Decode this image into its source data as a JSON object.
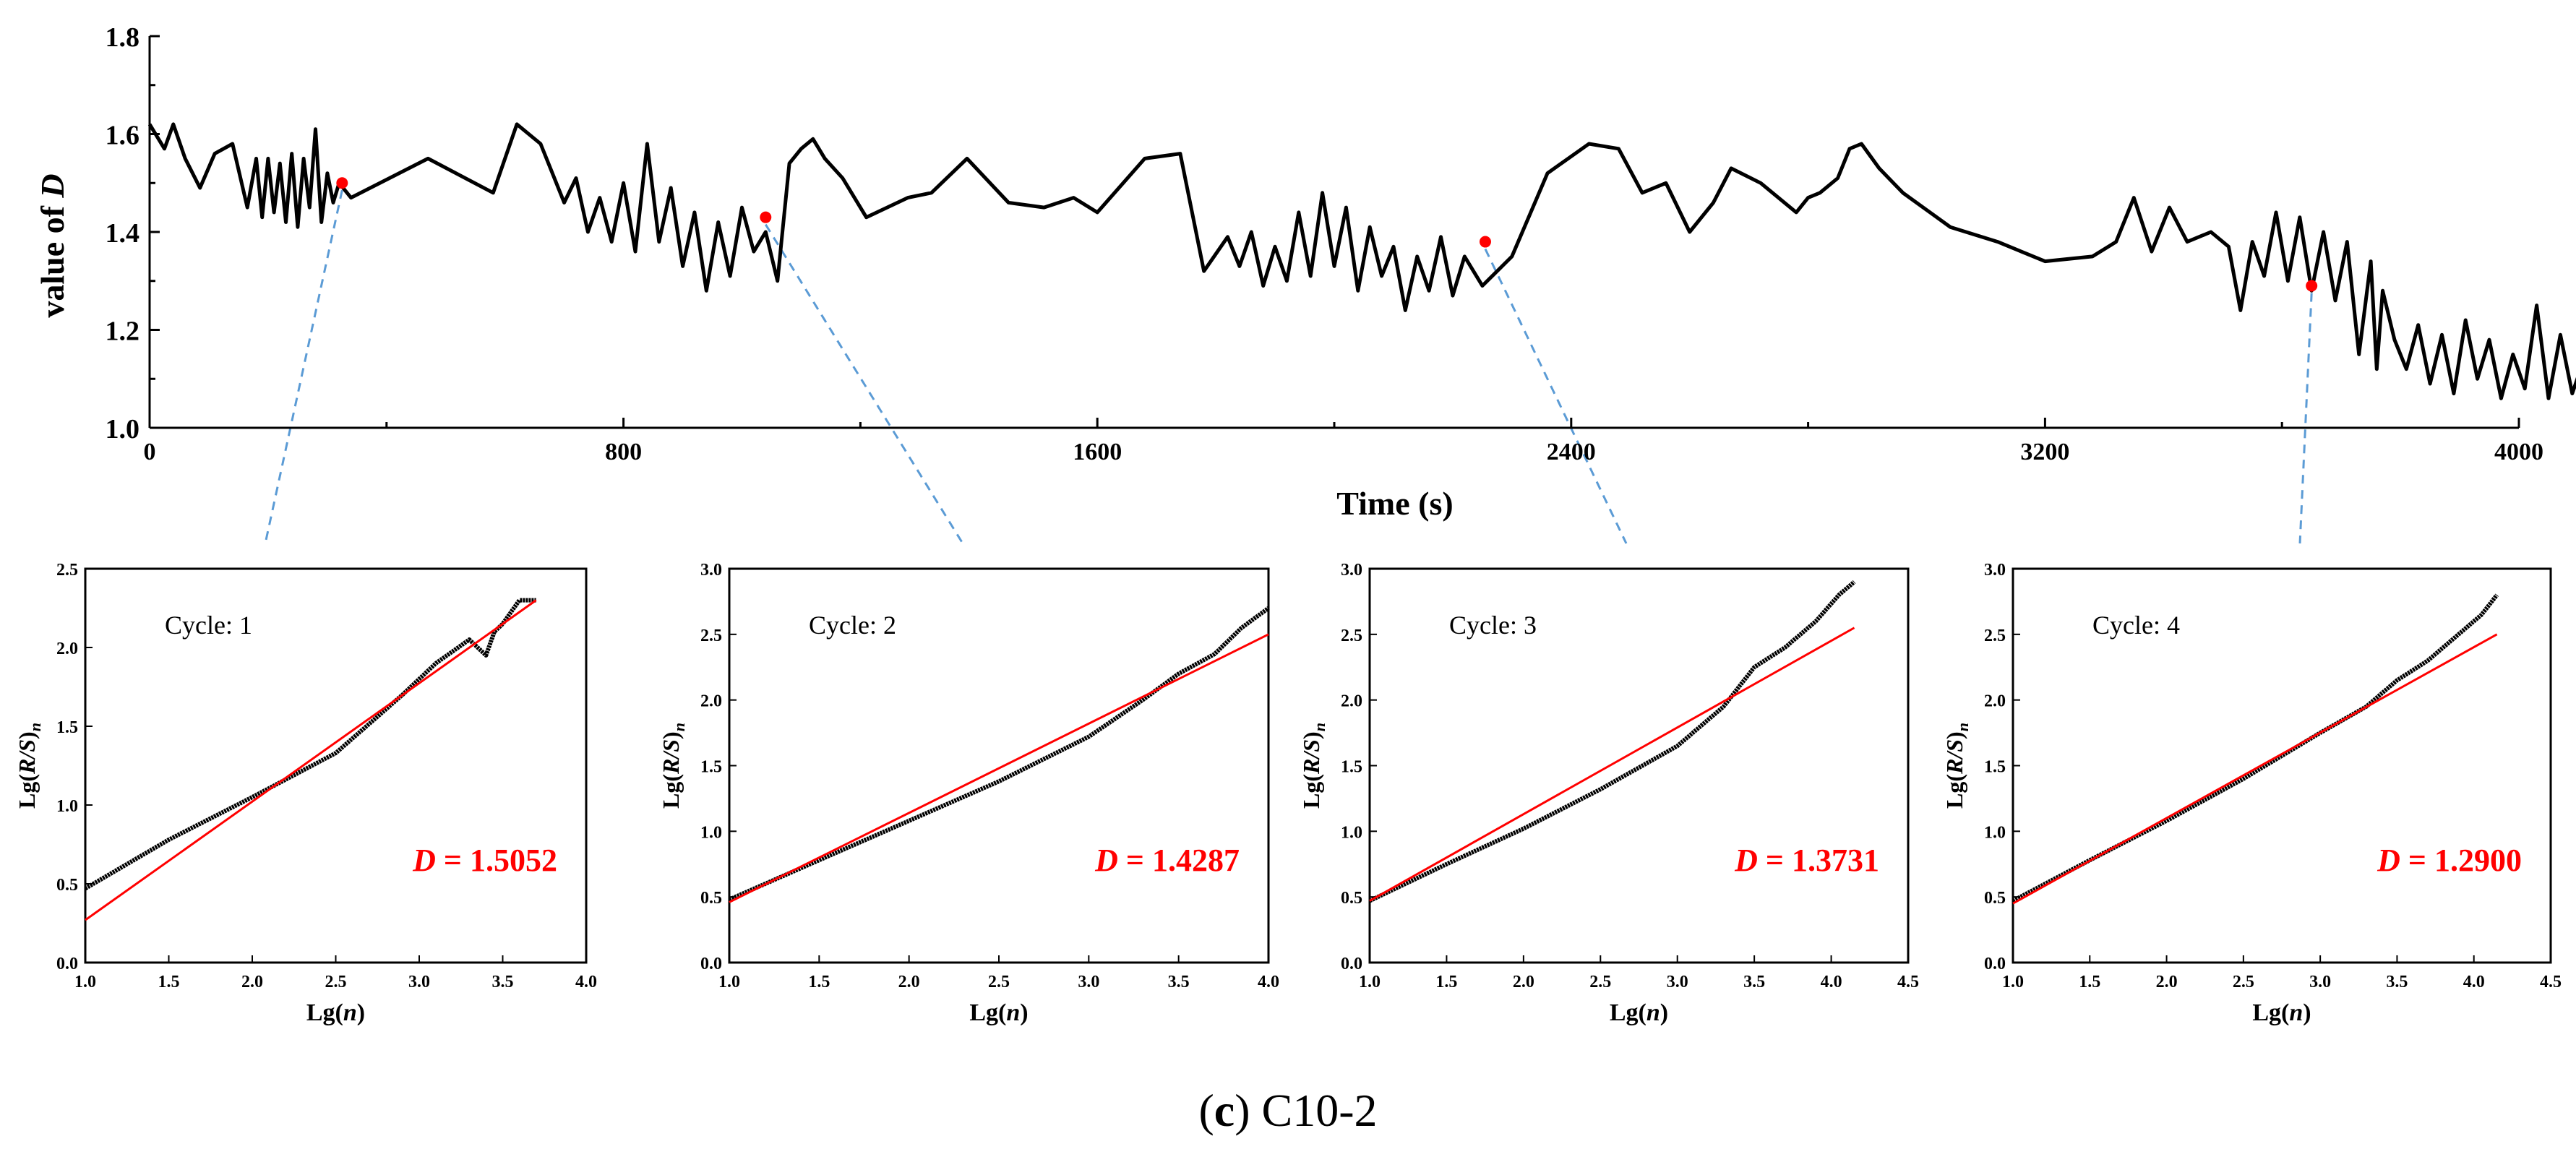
{
  "colors": {
    "series": "#000000",
    "fit_line": "#ff0000",
    "marker": "#ff0000",
    "connector": "#5b9bd5",
    "d_text": "#ff0000"
  },
  "caption": {
    "prefix": "(",
    "letter": "c",
    "suffix": ") C10-2"
  },
  "chart_data": [
    {
      "type": "line",
      "xlabel": "Time (s)",
      "ylabel_prefix": "value of ",
      "ylabel_var": "D",
      "xlim": [
        0,
        4000
      ],
      "ylim": [
        1.0,
        1.8
      ],
      "xticks": [
        0,
        800,
        1600,
        2400,
        3200,
        4000
      ],
      "yticks": [
        1.0,
        1.2,
        1.4,
        1.6,
        1.8
      ],
      "xtick_labels": [
        "0",
        "800",
        "1600",
        "2400",
        "3200",
        "4000"
      ],
      "ytick_labels": [
        "1.0",
        "1.2",
        "1.4",
        "1.6",
        "1.8"
      ],
      "series": [
        {
          "x": [
            0,
            25,
            40,
            60,
            85,
            110,
            140,
            165,
            180,
            190,
            200,
            210,
            220,
            230,
            240,
            250,
            260,
            270,
            280,
            290,
            300,
            310,
            320,
            340,
            470,
            580,
            620,
            660,
            700,
            720,
            740,
            760,
            780,
            800,
            820,
            840,
            860,
            880,
            900,
            920,
            940,
            960,
            980,
            1000,
            1020,
            1040,
            1060,
            1080,
            1100,
            1120,
            1140,
            1170,
            1210,
            1280,
            1320,
            1380,
            1450,
            1510,
            1560,
            1600,
            1680,
            1740,
            1780,
            1820,
            1840,
            1860,
            1880,
            1900,
            1920,
            1940,
            1960,
            1980,
            2000,
            2020,
            2040,
            2060,
            2080,
            2100,
            2120,
            2140,
            2160,
            2180,
            2200,
            2220,
            2250,
            2300,
            2360,
            2430,
            2480,
            2520,
            2560,
            2600,
            2640,
            2670,
            2720,
            2780,
            2800,
            2820,
            2850,
            2870,
            2890,
            2920,
            2960,
            3040,
            3120,
            3200,
            3280,
            3320,
            3350,
            3380,
            3410,
            3440,
            3480,
            3510,
            3530,
            3550,
            3570,
            3590,
            3610,
            3630,
            3650,
            3670,
            3690,
            3710,
            3730,
            3750,
            3760,
            3770,
            3790,
            3810,
            3830,
            3850,
            3870,
            3890,
            3910,
            3930,
            3950,
            3970,
            3990,
            4010,
            4030,
            4050,
            4070,
            4090,
            4110,
            4130,
            4150,
            4170,
            4190,
            4210
          ],
          "y": [
            1.62,
            1.57,
            1.62,
            1.55,
            1.49,
            1.56,
            1.58,
            1.45,
            1.55,
            1.43,
            1.55,
            1.44,
            1.54,
            1.42,
            1.56,
            1.41,
            1.55,
            1.45,
            1.61,
            1.42,
            1.52,
            1.46,
            1.5,
            1.47,
            1.55,
            1.48,
            1.62,
            1.58,
            1.46,
            1.51,
            1.4,
            1.47,
            1.38,
            1.5,
            1.36,
            1.58,
            1.38,
            1.49,
            1.33,
            1.44,
            1.28,
            1.42,
            1.31,
            1.45,
            1.36,
            1.4,
            1.3,
            1.54,
            1.57,
            1.59,
            1.55,
            1.51,
            1.43,
            1.47,
            1.48,
            1.55,
            1.46,
            1.45,
            1.47,
            1.44,
            1.55,
            1.56,
            1.32,
            1.39,
            1.33,
            1.4,
            1.29,
            1.37,
            1.3,
            1.44,
            1.31,
            1.48,
            1.33,
            1.45,
            1.28,
            1.41,
            1.31,
            1.37,
            1.24,
            1.35,
            1.28,
            1.39,
            1.27,
            1.35,
            1.29,
            1.35,
            1.52,
            1.58,
            1.57,
            1.48,
            1.5,
            1.4,
            1.46,
            1.53,
            1.5,
            1.44,
            1.47,
            1.48,
            1.51,
            1.57,
            1.58,
            1.53,
            1.48,
            1.41,
            1.38,
            1.34,
            1.35,
            1.38,
            1.47,
            1.36,
            1.45,
            1.38,
            1.4,
            1.37,
            1.24,
            1.38,
            1.31,
            1.44,
            1.3,
            1.43,
            1.28,
            1.4,
            1.26,
            1.38,
            1.15,
            1.34,
            1.12,
            1.28,
            1.18,
            1.12,
            1.21,
            1.09,
            1.19,
            1.07,
            1.22,
            1.1,
            1.18,
            1.06,
            1.15,
            1.08,
            1.25,
            1.06,
            1.19,
            1.07,
            1.14,
            1.06,
            1.17,
            1.05,
            1.15,
            1.06
          ]
        }
      ],
      "markers": [
        {
          "x": 325,
          "y": 1.5
        },
        {
          "x": 1040,
          "y": 1.43
        },
        {
          "x": 2255,
          "y": 1.38
        },
        {
          "x": 3650,
          "y": 1.29
        }
      ]
    },
    {
      "type": "scatter",
      "cycle_label": "Cycle: 1",
      "d_text": "= 1.5052",
      "d_var": "D",
      "xlabel": "Lg(n)",
      "ylabel": "Lg(R/S)n",
      "xlim": [
        1.0,
        4.0
      ],
      "ylim": [
        0.0,
        2.5
      ],
      "xticks": [
        1.0,
        1.5,
        2.0,
        2.5,
        3.0,
        3.5,
        4.0
      ],
      "yticks": [
        0.0,
        0.5,
        1.0,
        1.5,
        2.0,
        2.5
      ],
      "xtick_labels": [
        "1.0",
        "1.5",
        "2.0",
        "2.5",
        "3.0",
        "3.5",
        "4.0"
      ],
      "ytick_labels": [
        "0.0",
        "0.5",
        "1.0",
        "1.5",
        "2.0",
        "2.5"
      ],
      "series": [
        {
          "x": [
            1.0,
            1.5,
            2.0,
            2.5,
            2.9,
            3.1,
            3.3,
            3.4,
            3.45,
            3.5,
            3.6,
            3.7
          ],
          "y": [
            0.47,
            0.78,
            1.05,
            1.33,
            1.7,
            1.9,
            2.05,
            1.95,
            2.1,
            2.15,
            2.3,
            2.3
          ]
        }
      ],
      "fit": {
        "x": [
          1.0,
          3.7
        ],
        "y": [
          0.27,
          2.3
        ]
      }
    },
    {
      "type": "scatter",
      "cycle_label": "Cycle: 2",
      "d_text": "= 1.4287",
      "d_var": "D",
      "xlabel": "Lg(n)",
      "ylabel": "Lg(R/S)n",
      "xlim": [
        1.0,
        4.0
      ],
      "ylim": [
        0.0,
        3.0
      ],
      "xticks": [
        1.0,
        1.5,
        2.0,
        2.5,
        3.0,
        3.5,
        4.0
      ],
      "yticks": [
        0.0,
        0.5,
        1.0,
        1.5,
        2.0,
        2.5,
        3.0
      ],
      "xtick_labels": [
        "1.0",
        "1.5",
        "2.0",
        "2.5",
        "3.0",
        "3.5",
        "4.0"
      ],
      "ytick_labels": [
        "0.0",
        "0.5",
        "1.0",
        "1.5",
        "2.0",
        "2.5",
        "3.0"
      ],
      "series": [
        {
          "x": [
            1.0,
            1.5,
            2.0,
            2.5,
            3.0,
            3.3,
            3.5,
            3.7,
            3.85,
            4.0
          ],
          "y": [
            0.48,
            0.78,
            1.08,
            1.38,
            1.72,
            2.0,
            2.2,
            2.35,
            2.55,
            2.7
          ]
        }
      ],
      "fit": {
        "x": [
          1.0,
          4.0
        ],
        "y": [
          0.46,
          2.5
        ]
      }
    },
    {
      "type": "scatter",
      "cycle_label": "Cycle: 3",
      "d_text": "= 1.3731",
      "d_var": "D",
      "xlabel": "Lg(n)",
      "ylabel": "Lg(R/S)n",
      "xlim": [
        1.0,
        4.5
      ],
      "ylim": [
        0.0,
        3.0
      ],
      "xticks": [
        1.0,
        1.5,
        2.0,
        2.5,
        3.0,
        3.5,
        4.0,
        4.5
      ],
      "yticks": [
        0.0,
        0.5,
        1.0,
        1.5,
        2.0,
        2.5,
        3.0
      ],
      "xtick_labels": [
        "1.0",
        "1.5",
        "2.0",
        "2.5",
        "3.0",
        "3.5",
        "4.0",
        "4.5"
      ],
      "ytick_labels": [
        "0.0",
        "0.5",
        "1.0",
        "1.5",
        "2.0",
        "2.5",
        "3.0"
      ],
      "series": [
        {
          "x": [
            1.0,
            1.5,
            2.0,
            2.5,
            3.0,
            3.3,
            3.5,
            3.7,
            3.9,
            4.05,
            4.15
          ],
          "y": [
            0.47,
            0.75,
            1.02,
            1.32,
            1.65,
            1.95,
            2.25,
            2.4,
            2.6,
            2.8,
            2.9
          ]
        }
      ],
      "fit": {
        "x": [
          1.0,
          4.15
        ],
        "y": [
          0.47,
          2.55
        ]
      }
    },
    {
      "type": "scatter",
      "cycle_label": "Cycle: 4",
      "d_text": "= 1.2900",
      "d_var": "D",
      "xlabel": "Lg(n)",
      "ylabel": "Lg(R/S)n",
      "xlim": [
        1.0,
        4.5
      ],
      "ylim": [
        0.0,
        3.0
      ],
      "xticks": [
        1.0,
        1.5,
        2.0,
        2.5,
        3.0,
        3.5,
        4.0,
        4.5
      ],
      "yticks": [
        0.0,
        0.5,
        1.0,
        1.5,
        2.0,
        2.5,
        3.0
      ],
      "xtick_labels": [
        "1.0",
        "1.5",
        "2.0",
        "2.5",
        "3.0",
        "3.5",
        "4.0",
        "4.5"
      ],
      "ytick_labels": [
        "0.0",
        "0.5",
        "1.0",
        "1.5",
        "2.0",
        "2.5",
        "3.0"
      ],
      "series": [
        {
          "x": [
            1.0,
            1.5,
            2.0,
            2.5,
            3.0,
            3.3,
            3.5,
            3.7,
            3.9,
            4.05,
            4.15
          ],
          "y": [
            0.47,
            0.78,
            1.08,
            1.4,
            1.75,
            1.95,
            2.15,
            2.3,
            2.5,
            2.65,
            2.8
          ]
        }
      ],
      "fit": {
        "x": [
          1.0,
          4.15
        ],
        "y": [
          0.45,
          2.5
        ]
      }
    }
  ]
}
